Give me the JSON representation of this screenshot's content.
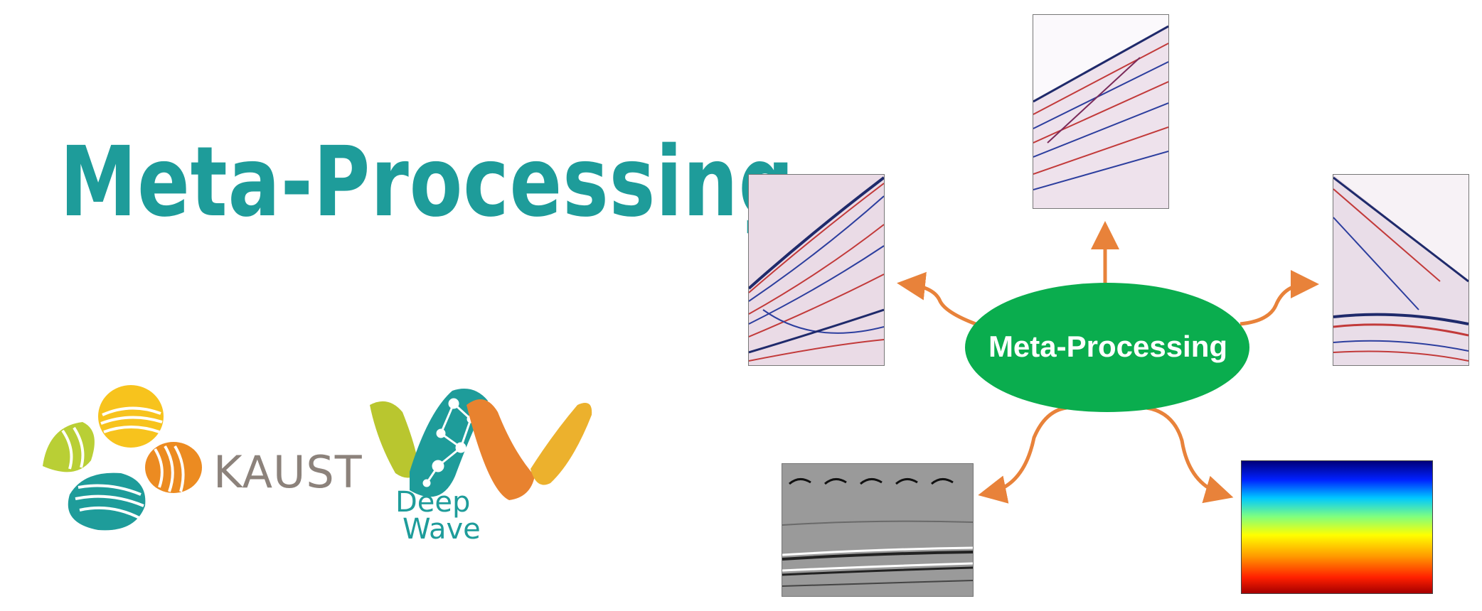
{
  "page": {
    "title": "Meta-Processing"
  },
  "logos": {
    "kaust": "KAUST",
    "deepwave_line1": "Deep",
    "deepwave_line2": "Wave"
  },
  "diagram": {
    "center_label": "Meta-Processing",
    "center_color": "#0aad4e",
    "arrow_color": "#e8823a",
    "outputs": [
      {
        "name": "noisy-seismic-gather"
      },
      {
        "name": "seismic-shot-gather"
      },
      {
        "name": "interpolated-gather"
      },
      {
        "name": "migrated-image"
      },
      {
        "name": "velocity-model"
      }
    ]
  },
  "colors": {
    "title": "#1e9c9a",
    "kaust_text": "#8c827b",
    "deepwave_teal": "#1e9c9a"
  }
}
